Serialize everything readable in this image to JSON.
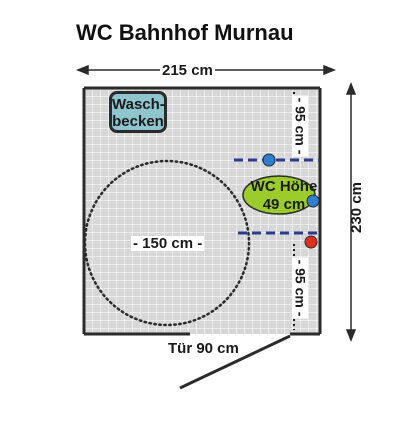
{
  "title": "WC Bahnhof Murnau",
  "dimensions": {
    "width_label": "215 cm",
    "height_label": "230 cm",
    "door_label": "Tür 90 cm",
    "turning_circle_label": "- 150 cm -",
    "distance_top_label": "- 95 cm -",
    "distance_bottom_label": "- 95 cm -"
  },
  "sink": {
    "line1": "Wasch-",
    "line2": "becken"
  },
  "toilet": {
    "line1": "WC Höhe",
    "line2": "49 cm"
  },
  "colors": {
    "floor_tile": "#d7d7d7",
    "grid_line": "#ffffff",
    "wall": "#2b2b2b",
    "sink_fill": "#8fc5cd",
    "toilet_fill": "#9ccc2c",
    "grab_bar": "#2e3a8c",
    "support_dot_blue": "#2e7fd0",
    "support_dot_red": "#e0301c",
    "turning_circle": "#2b2b2b"
  }
}
